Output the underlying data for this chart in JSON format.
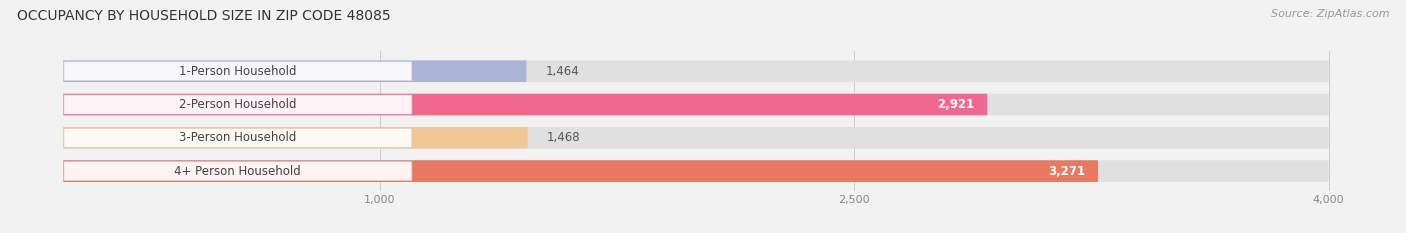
{
  "title": "OCCUPANCY BY HOUSEHOLD SIZE IN ZIP CODE 48085",
  "source": "Source: ZipAtlas.com",
  "categories": [
    "1-Person Household",
    "2-Person Household",
    "3-Person Household",
    "4+ Person Household"
  ],
  "values": [
    1464,
    2921,
    1468,
    3271
  ],
  "value_labels": [
    "1,464",
    "2,921",
    "1,468",
    "3,271"
  ],
  "bar_colors": [
    "#aab4d8",
    "#f06890",
    "#f0c896",
    "#e87860"
  ],
  "label_inside": [
    false,
    true,
    false,
    true
  ],
  "xlim_min": -200,
  "xlim_max": 4200,
  "data_min": 0,
  "data_max": 4000,
  "xticks": [
    1000,
    2500,
    4000
  ],
  "xtick_labels": [
    "1,000",
    "2,500",
    "4,000"
  ],
  "bg_color": "#f2f2f2",
  "bar_bg_color": "#e0e0e0",
  "title_fontsize": 10,
  "source_fontsize": 8,
  "value_fontsize": 8.5,
  "label_fontsize": 8.5,
  "bar_height": 0.65
}
